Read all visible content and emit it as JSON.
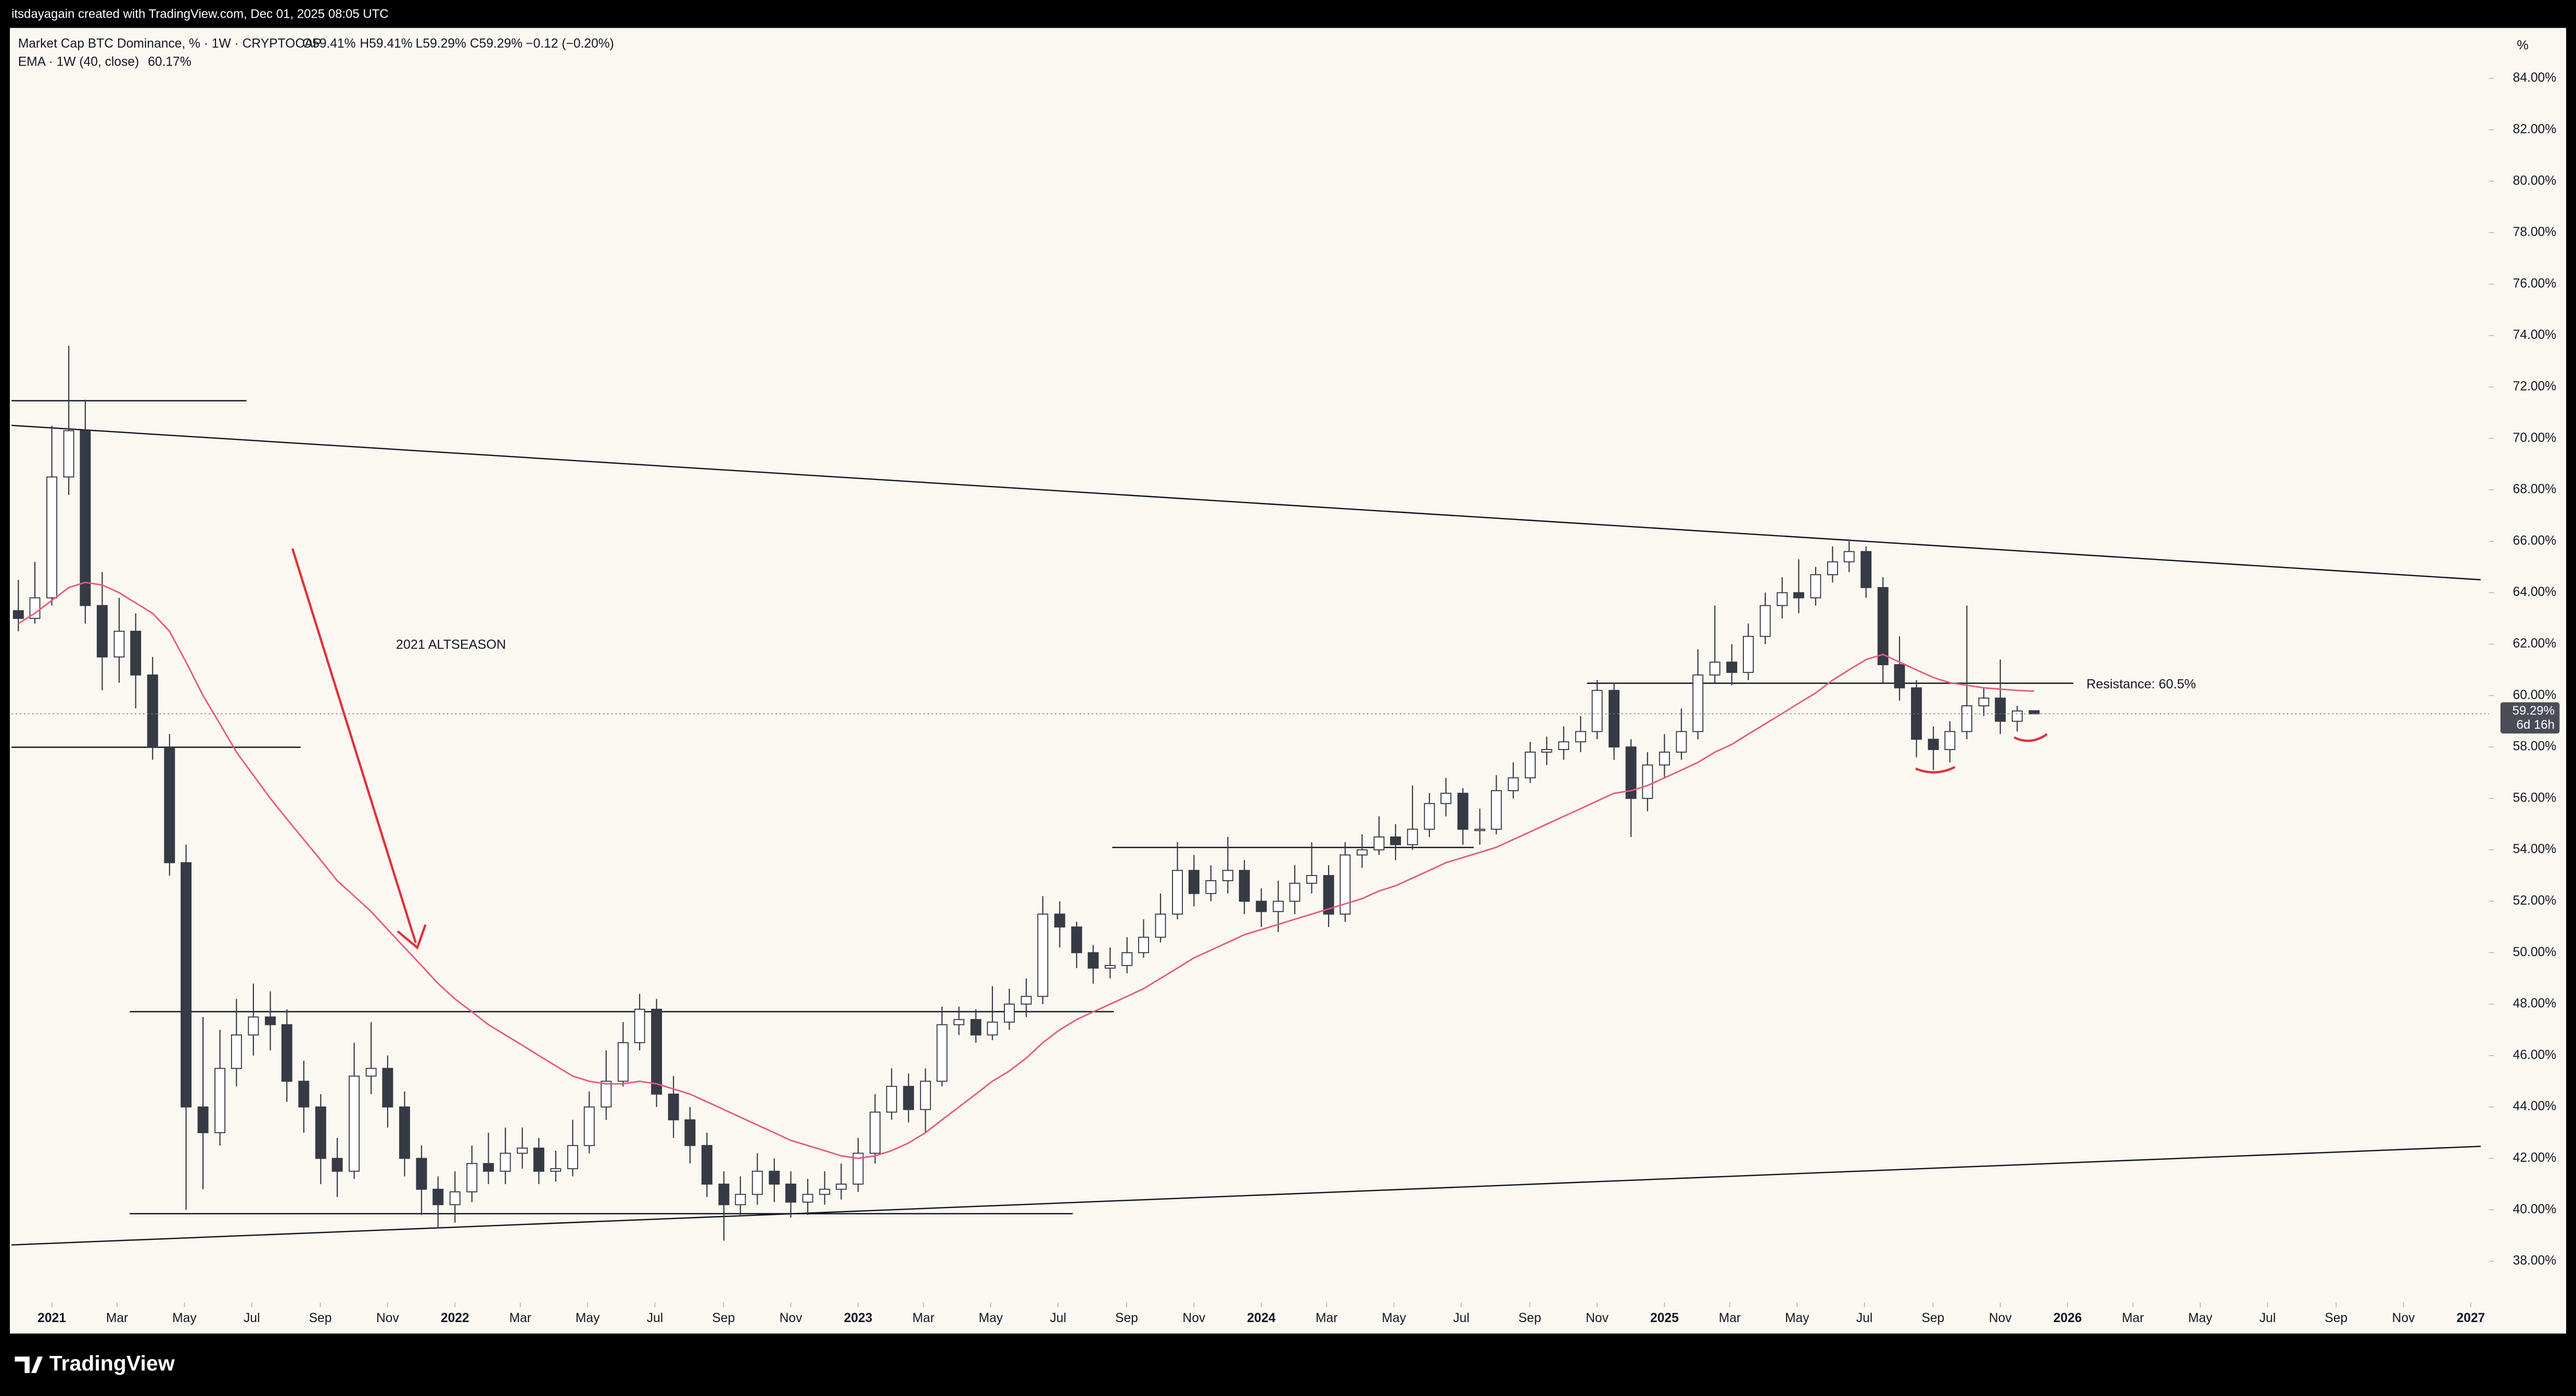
{
  "chart_data": {
    "type": "candlestick",
    "header": "itsdayagain created with TradingView.com, Dec 01, 2025 08:05 UTC",
    "title": "Market Cap BTC Dominance, % · 1W · CRYPTOCAP",
    "ohlc_legend": [
      "O59.41%",
      "H59.41%",
      "L59.29%",
      "C59.29%",
      "−0.12 (−0.20%)"
    ],
    "x": [
      2020.917,
      2020.958,
      2021,
      2021.042,
      2021.083,
      2021.125,
      2021.167,
      2021.208,
      2021.25,
      2021.292,
      2021.333,
      2021.375,
      2021.417,
      2021.458,
      2021.5,
      2021.542,
      2021.583,
      2021.625,
      2021.667,
      2021.708,
      2021.75,
      2021.792,
      2021.833,
      2021.875,
      2021.917,
      2021.958,
      2022,
      2022.042,
      2022.083,
      2022.125,
      2022.167,
      2022.208,
      2022.25,
      2022.292,
      2022.333,
      2022.375,
      2022.417,
      2022.458,
      2022.5,
      2022.542,
      2022.583,
      2022.625,
      2022.667,
      2022.708,
      2022.75,
      2022.792,
      2022.833,
      2022.875,
      2022.917,
      2022.958,
      2023,
      2023.042,
      2023.083,
      2023.125,
      2023.167,
      2023.208,
      2023.25,
      2023.292,
      2023.333,
      2023.375,
      2023.417,
      2023.458,
      2023.5,
      2023.542,
      2023.583,
      2023.625,
      2023.667,
      2023.708,
      2023.75,
      2023.792,
      2023.833,
      2023.875,
      2023.917,
      2023.958,
      2024,
      2024.042,
      2024.083,
      2024.125,
      2024.167,
      2024.208,
      2024.25,
      2024.292,
      2024.333,
      2024.375,
      2024.417,
      2024.458,
      2024.5,
      2024.542,
      2024.583,
      2024.625,
      2024.667,
      2024.708,
      2024.75,
      2024.792,
      2024.833,
      2024.875,
      2024.917,
      2024.958,
      2025,
      2025.042,
      2025.083,
      2025.125,
      2025.167,
      2025.208,
      2025.25,
      2025.292,
      2025.333,
      2025.375,
      2025.417,
      2025.458,
      2025.5,
      2025.542,
      2025.583,
      2025.625,
      2025.667,
      2025.708,
      2025.75,
      2025.792,
      2025.833,
      2025.875,
      2025.917
    ],
    "open": [
      63.3,
      63.0,
      63.8,
      68.5,
      70.3,
      63.5,
      61.5,
      62.5,
      60.8,
      58.0,
      53.5,
      44.0,
      43.0,
      45.5,
      46.8,
      47.5,
      47.2,
      45.0,
      44.0,
      42.0,
      41.5,
      45.2,
      45.5,
      44.0,
      42.0,
      40.8,
      40.2,
      40.7,
      41.8,
      41.5,
      42.2,
      42.4,
      41.5,
      41.6,
      42.5,
      44.0,
      45.0,
      46.5,
      47.8,
      44.5,
      43.5,
      42.5,
      41.0,
      40.2,
      40.6,
      41.5,
      41.0,
      40.3,
      40.6,
      40.8,
      41.0,
      42.2,
      43.8,
      44.8,
      43.9,
      45.0,
      47.2,
      47.4,
      46.8,
      47.3,
      48.0,
      48.3,
      51.5,
      51.0,
      50.0,
      49.4,
      49.5,
      50.0,
      50.6,
      51.5,
      53.2,
      52.3,
      52.8,
      53.2,
      52.0,
      51.6,
      52.0,
      52.7,
      53.0,
      51.5,
      53.8,
      54.0,
      54.5,
      54.2,
      54.8,
      55.8,
      56.2,
      54.8,
      54.8,
      56.3,
      56.8,
      57.8,
      57.9,
      58.2,
      58.6,
      60.2,
      58.0,
      56.0,
      57.3,
      57.8,
      58.6,
      60.8,
      61.3,
      60.9,
      62.3,
      63.5,
      64.0,
      63.8,
      64.7,
      65.2,
      65.6,
      64.2,
      61.2,
      60.3,
      58.3,
      57.9,
      58.6,
      59.6,
      59.9,
      59.0,
      59.41
    ],
    "high": [
      64.5,
      65.2,
      70.5,
      73.6,
      71.5,
      64.8,
      63.8,
      63.2,
      61.5,
      58.5,
      54.2,
      47.5,
      47.0,
      48.2,
      48.8,
      48.5,
      47.8,
      45.8,
      44.5,
      42.8,
      46.5,
      47.3,
      46.0,
      44.6,
      42.5,
      41.3,
      41.5,
      42.5,
      43.0,
      43.2,
      43.2,
      42.8,
      42.3,
      43.5,
      44.6,
      46.2,
      47.3,
      48.4,
      48.2,
      45.2,
      44.0,
      43.0,
      41.5,
      41.3,
      42.2,
      42.0,
      41.5,
      41.2,
      41.5,
      41.8,
      42.8,
      44.5,
      45.5,
      45.3,
      45.5,
      47.9,
      47.9,
      47.8,
      48.7,
      48.6,
      49.0,
      52.2,
      52.0,
      51.2,
      50.3,
      50.2,
      50.6,
      51.3,
      52.3,
      54.3,
      53.8,
      53.4,
      54.5,
      53.6,
      52.5,
      52.8,
      53.4,
      54.3,
      53.4,
      54.3,
      54.6,
      55.3,
      55.0,
      56.5,
      56.2,
      56.8,
      56.4,
      55.6,
      56.9,
      57.4,
      58.2,
      58.4,
      58.8,
      59.2,
      60.6,
      60.5,
      58.3,
      57.8,
      58.5,
      59.5,
      61.8,
      63.5,
      62.0,
      62.8,
      64.0,
      64.6,
      65.3,
      65.0,
      65.8,
      66.0,
      65.8,
      64.6,
      62.3,
      60.6,
      58.8,
      59.0,
      63.5,
      60.3,
      61.4,
      59.6,
      59.41
    ],
    "low": [
      62.5,
      62.8,
      63.5,
      67.8,
      62.8,
      60.2,
      60.5,
      59.5,
      57.5,
      53.0,
      40.0,
      40.8,
      42.5,
      44.8,
      46.0,
      46.2,
      44.2,
      43.0,
      41.0,
      40.5,
      41.2,
      44.5,
      43.2,
      41.3,
      39.8,
      39.3,
      39.5,
      40.3,
      41.0,
      41.0,
      41.6,
      41.0,
      41.1,
      41.3,
      42.2,
      43.5,
      44.8,
      46.2,
      44.0,
      42.8,
      41.8,
      40.5,
      38.8,
      39.8,
      40.2,
      40.3,
      39.7,
      39.8,
      40.2,
      40.4,
      40.7,
      41.8,
      43.5,
      43.4,
      43.0,
      44.8,
      46.8,
      46.5,
      46.6,
      47.0,
      47.5,
      48.0,
      50.2,
      49.4,
      48.8,
      49.0,
      49.2,
      49.8,
      50.4,
      51.3,
      51.8,
      52.0,
      52.3,
      51.5,
      51.0,
      50.8,
      51.5,
      52.3,
      51.0,
      51.2,
      53.3,
      53.8,
      53.6,
      54.0,
      54.5,
      55.3,
      54.2,
      54.2,
      54.6,
      56.0,
      56.6,
      57.3,
      57.5,
      57.8,
      58.3,
      57.5,
      54.5,
      55.5,
      56.8,
      57.5,
      58.3,
      60.5,
      60.4,
      60.6,
      62.0,
      63.0,
      63.2,
      63.5,
      64.4,
      64.8,
      63.8,
      60.5,
      59.8,
      57.6,
      57.1,
      57.4,
      58.3,
      59.2,
      58.5,
      58.6,
      59.29
    ],
    "close": [
      63.0,
      63.8,
      68.5,
      70.3,
      63.5,
      61.5,
      62.5,
      60.8,
      58.0,
      53.5,
      44.0,
      43.0,
      45.5,
      46.8,
      47.5,
      47.2,
      45.0,
      44.0,
      42.0,
      41.5,
      45.2,
      45.5,
      44.0,
      42.0,
      40.8,
      40.2,
      40.7,
      41.8,
      41.5,
      42.2,
      42.4,
      41.5,
      41.6,
      42.5,
      44.0,
      45.0,
      46.5,
      47.8,
      44.5,
      43.5,
      42.5,
      41.0,
      40.2,
      40.6,
      41.5,
      41.0,
      40.3,
      40.6,
      40.8,
      41.0,
      42.2,
      43.8,
      44.8,
      43.9,
      45.0,
      47.2,
      47.4,
      46.8,
      47.3,
      48.0,
      48.3,
      51.5,
      51.0,
      50.0,
      49.4,
      49.5,
      50.0,
      50.6,
      51.5,
      53.2,
      52.3,
      52.8,
      53.2,
      52.0,
      51.6,
      52.0,
      52.7,
      53.0,
      51.5,
      53.8,
      54.0,
      54.5,
      54.2,
      54.8,
      55.8,
      56.2,
      54.8,
      54.8,
      56.3,
      56.8,
      57.8,
      57.9,
      58.2,
      58.6,
      60.2,
      58.0,
      56.0,
      57.3,
      57.8,
      58.6,
      60.8,
      61.3,
      60.9,
      62.3,
      63.5,
      64.0,
      63.8,
      64.7,
      65.2,
      65.6,
      64.2,
      61.2,
      60.3,
      58.3,
      57.9,
      58.6,
      59.6,
      59.9,
      59.0,
      59.4,
      59.29
    ],
    "up_color": "#ffffff",
    "down_color": "#363a45",
    "ema": {
      "name": "EMA · 1W (40, close)",
      "value_label": "60.17%",
      "color": "#e8577f",
      "values": [
        62.8,
        63.2,
        63.7,
        64.2,
        64.4,
        64.3,
        64.0,
        63.6,
        63.2,
        62.5,
        61.3,
        60.0,
        58.9,
        57.8,
        56.9,
        56.0,
        55.2,
        54.4,
        53.6,
        52.8,
        52.2,
        51.6,
        50.9,
        50.2,
        49.5,
        48.8,
        48.2,
        47.7,
        47.2,
        46.8,
        46.4,
        46.0,
        45.6,
        45.2,
        45.0,
        44.9,
        44.9,
        45.0,
        44.9,
        44.7,
        44.5,
        44.2,
        43.9,
        43.6,
        43.3,
        43.0,
        42.7,
        42.5,
        42.3,
        42.1,
        42.0,
        42.1,
        42.3,
        42.6,
        43.0,
        43.5,
        44.0,
        44.5,
        45.0,
        45.4,
        45.9,
        46.5,
        47.0,
        47.4,
        47.7,
        48.0,
        48.3,
        48.6,
        49.0,
        49.4,
        49.8,
        50.1,
        50.4,
        50.7,
        50.9,
        51.1,
        51.3,
        51.5,
        51.7,
        51.9,
        52.1,
        52.4,
        52.6,
        52.9,
        53.2,
        53.5,
        53.7,
        53.9,
        54.1,
        54.4,
        54.7,
        55.0,
        55.3,
        55.6,
        55.9,
        56.2,
        56.3,
        56.5,
        56.8,
        57.1,
        57.4,
        57.8,
        58.1,
        58.5,
        58.9,
        59.3,
        59.7,
        60.1,
        60.6,
        61.0,
        61.4,
        61.6,
        61.3,
        61.0,
        60.7,
        60.5,
        60.4,
        60.3,
        60.25,
        60.2,
        60.17
      ]
    },
    "annotations": [
      "2021 ALTSEASON",
      "Resistance: 60.5%"
    ],
    "price_label": [
      "59.29%",
      "6d 16h"
    ],
    "y_unit": "%",
    "brand": "TradingView",
    "xlim": [
      2020.9,
      2027.045
    ],
    "xticks": [
      2021,
      {
        "value": 2021.162,
        "label": "Mar"
      },
      {
        "value": 2021.329,
        "label": "May"
      },
      {
        "value": 2021.496,
        "label": "Jul"
      },
      {
        "value": 2021.666,
        "label": "Sep"
      },
      {
        "value": 2021.833,
        "label": "Nov"
      },
      2022,
      {
        "value": 2022.162,
        "label": "Mar"
      },
      {
        "value": 2022.329,
        "label": "May"
      },
      {
        "value": 2022.496,
        "label": "Jul"
      },
      {
        "value": 2022.666,
        "label": "Sep"
      },
      {
        "value": 2022.833,
        "label": "Nov"
      },
      2023,
      {
        "value": 2023.162,
        "label": "Mar"
      },
      {
        "value": 2023.329,
        "label": "May"
      },
      {
        "value": 2023.496,
        "label": "Jul"
      },
      {
        "value": 2023.666,
        "label": "Sep"
      },
      {
        "value": 2023.833,
        "label": "Nov"
      },
      2024,
      {
        "value": 2024.162,
        "label": "Mar"
      },
      {
        "value": 2024.329,
        "label": "May"
      },
      {
        "value": 2024.496,
        "label": "Jul"
      },
      {
        "value": 2024.666,
        "label": "Sep"
      },
      {
        "value": 2024.833,
        "label": "Nov"
      },
      2025,
      {
        "value": 2025.162,
        "label": "Mar"
      },
      {
        "value": 2025.329,
        "label": "May"
      },
      {
        "value": 2025.496,
        "label": "Jul"
      },
      {
        "value": 2025.666,
        "label": "Sep"
      },
      {
        "value": 2025.833,
        "label": "Nov"
      },
      2026,
      {
        "value": 2026.162,
        "label": "Mar"
      },
      {
        "value": 2026.329,
        "label": "May"
      },
      {
        "value": 2026.496,
        "label": "Jul"
      },
      {
        "value": 2026.666,
        "label": "Sep"
      },
      {
        "value": 2026.833,
        "label": "Nov"
      },
      2027
    ],
    "ylim": [
      36.4,
      85.9
    ],
    "yticks": [
      {
        "value": 38,
        "label": "38.00%"
      },
      {
        "value": 40,
        "label": "40.00%"
      },
      {
        "value": 42,
        "label": "42.00%"
      },
      {
        "value": 44,
        "label": "44.00%"
      },
      {
        "value": 46,
        "label": "46.00%"
      },
      {
        "value": 48,
        "label": "48.00%"
      },
      {
        "value": 50,
        "label": "50.00%"
      },
      {
        "value": 52,
        "label": "52.00%"
      },
      {
        "value": 54,
        "label": "54.00%"
      },
      {
        "value": 56,
        "label": "56.00%"
      },
      {
        "value": 58,
        "label": "58.00%"
      },
      {
        "value": 60,
        "label": "60.00%"
      },
      {
        "value": 62,
        "label": "62.00%"
      },
      {
        "value": 64,
        "label": "64.00%"
      },
      {
        "value": 66,
        "label": "66.00%"
      },
      {
        "value": 68,
        "label": "68.00%"
      },
      {
        "value": 70,
        "label": "70.00%"
      },
      {
        "value": 72,
        "label": "72.00%"
      },
      {
        "value": 74,
        "label": "74.00%"
      },
      {
        "value": 76,
        "label": "76.00%"
      },
      {
        "value": 78,
        "label": "78.00%"
      },
      {
        "value": 80,
        "label": "80.00%"
      },
      {
        "value": 82,
        "label": "82.00%"
      },
      {
        "value": 84,
        "label": "84.00%"
      }
    ],
    "grid": false
  }
}
